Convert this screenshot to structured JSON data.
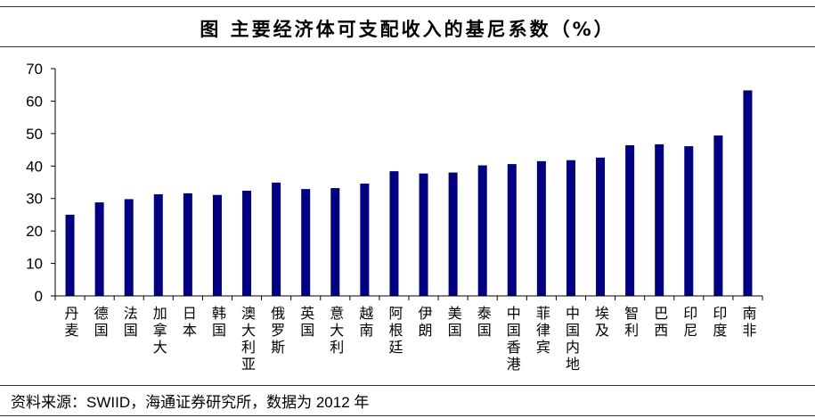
{
  "source": "资料来源：SWIID，海通证券研究所，数据为 2012 年",
  "chart_data": {
    "type": "bar",
    "title": "图 主要经济体可支配收入的基尼系数（%）",
    "xlabel": "",
    "ylabel": "",
    "categories": [
      "丹麦",
      "德国",
      "法国",
      "加拿大",
      "日本",
      "韩国",
      "澳大利亚",
      "俄罗斯",
      "英国",
      "意大利",
      "越南",
      "阿根廷",
      "伊朗",
      "美国",
      "泰国",
      "中国香港",
      "菲律宾",
      "中国内地",
      "埃及",
      "智利",
      "巴西",
      "印尼",
      "印度",
      "南非"
    ],
    "values": [
      25.0,
      28.8,
      29.8,
      31.3,
      31.6,
      31.1,
      32.4,
      34.9,
      32.9,
      33.2,
      34.6,
      38.4,
      37.7,
      38.0,
      40.2,
      40.6,
      41.5,
      41.8,
      42.6,
      46.4,
      46.7,
      46.1,
      49.4,
      63.3
    ],
    "ylim": [
      0,
      70
    ],
    "yticks": [
      0,
      10,
      20,
      30,
      40,
      50,
      60,
      70
    ],
    "grid": false,
    "colors": {
      "bar": "#000080",
      "axis": "#000000"
    }
  }
}
